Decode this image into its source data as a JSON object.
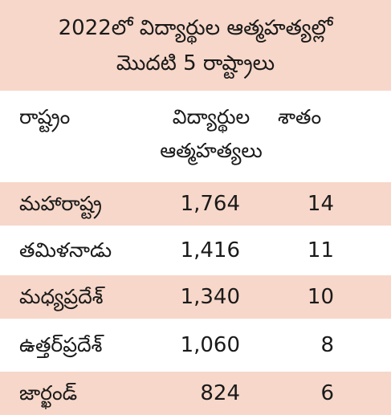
{
  "title": {
    "line1": "2022లో విద్యార్థుల ఆత్మహత్యల్లో",
    "line2": "మొదటి 5 రాష్ట్రాలు"
  },
  "headers": {
    "state": "రాష్ట్రం",
    "count_line1": "విద్యార్థుల",
    "count_line2": "ఆత్మహత్యలు",
    "percent": "శాతం"
  },
  "rows": [
    {
      "state": "మహారాష్ట్ర",
      "count": "1,764",
      "percent": "14"
    },
    {
      "state": "తమిళనాడు",
      "count": "1,416",
      "percent": "11"
    },
    {
      "state": "మధ్యప్రదేశ్",
      "count": "1,340",
      "percent": "10"
    },
    {
      "state": "ఉత్తర్‌ప్రదేశ్",
      "count": "1,060",
      "percent": "8"
    },
    {
      "state": "జార్ఖండ్",
      "count": "824",
      "percent": "6"
    }
  ],
  "colors": {
    "band": "#f7d7c9",
    "text": "#1a1a1a",
    "background": "#ffffff"
  }
}
